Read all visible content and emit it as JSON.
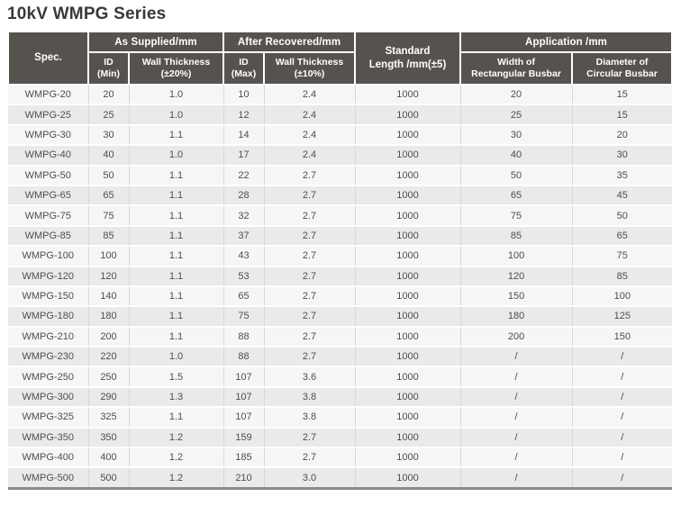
{
  "title": "10kV WMPG Series",
  "colors": {
    "header_bg": "#56534f",
    "row_odd": "#f6f6f7",
    "row_even": "#eaeaec",
    "body_text": "#4f4d4d",
    "bottom_border": "#8b8b8b"
  },
  "table": {
    "header": {
      "spec": "Spec.",
      "as_supplied": "As Supplied/mm",
      "after_recovered": "After Recovered/mm",
      "standard_length_line1": "Standard",
      "standard_length_line2": "Length /mm(±5)",
      "application": "Application /mm",
      "id_min_line1": "ID",
      "id_min_line2": "(Min)",
      "wt20_line1": "Wall Thickness",
      "wt20_line2": "(±20%)",
      "id_max_line1": "ID",
      "id_max_line2": "(Max)",
      "wt10_line1": "Wall Thickness",
      "wt10_line2": "(±10%)",
      "width_rect_line1": "Width of",
      "width_rect_line2": "Rectangular Busbar",
      "dia_circ_line1": "Diameter of",
      "dia_circ_line2": "Circular Busbar"
    },
    "rows": [
      {
        "spec": "WMPG-20",
        "id_min": "20",
        "wt20": "1.0",
        "id_max": "10",
        "wt10": "2.4",
        "std_len": "1000",
        "width_rect": "20",
        "dia_circ": "15"
      },
      {
        "spec": "WMPG-25",
        "id_min": "25",
        "wt20": "1.0",
        "id_max": "12",
        "wt10": "2.4",
        "std_len": "1000",
        "width_rect": "25",
        "dia_circ": "15"
      },
      {
        "spec": "WMPG-30",
        "id_min": "30",
        "wt20": "1.1",
        "id_max": "14",
        "wt10": "2.4",
        "std_len": "1000",
        "width_rect": "30",
        "dia_circ": "20"
      },
      {
        "spec": "WMPG-40",
        "id_min": "40",
        "wt20": "1.0",
        "id_max": "17",
        "wt10": "2.4",
        "std_len": "1000",
        "width_rect": "40",
        "dia_circ": "30"
      },
      {
        "spec": "WMPG-50",
        "id_min": "50",
        "wt20": "1.1",
        "id_max": "22",
        "wt10": "2.7",
        "std_len": "1000",
        "width_rect": "50",
        "dia_circ": "35"
      },
      {
        "spec": "WMPG-65",
        "id_min": "65",
        "wt20": "1.1",
        "id_max": "28",
        "wt10": "2.7",
        "std_len": "1000",
        "width_rect": "65",
        "dia_circ": "45"
      },
      {
        "spec": "WMPG-75",
        "id_min": "75",
        "wt20": "1.1",
        "id_max": "32",
        "wt10": "2.7",
        "std_len": "1000",
        "width_rect": "75",
        "dia_circ": "50"
      },
      {
        "spec": "WMPG-85",
        "id_min": "85",
        "wt20": "1.1",
        "id_max": "37",
        "wt10": "2.7",
        "std_len": "1000",
        "width_rect": "85",
        "dia_circ": "65"
      },
      {
        "spec": "WMPG-100",
        "id_min": "100",
        "wt20": "1.1",
        "id_max": "43",
        "wt10": "2.7",
        "std_len": "1000",
        "width_rect": "100",
        "dia_circ": "75"
      },
      {
        "spec": "WMPG-120",
        "id_min": "120",
        "wt20": "1.1",
        "id_max": "53",
        "wt10": "2.7",
        "std_len": "1000",
        "width_rect": "120",
        "dia_circ": "85"
      },
      {
        "spec": "WMPG-150",
        "id_min": "140",
        "wt20": "1.1",
        "id_max": "65",
        "wt10": "2.7",
        "std_len": "1000",
        "width_rect": "150",
        "dia_circ": "100"
      },
      {
        "spec": "WMPG-180",
        "id_min": "180",
        "wt20": "1.1",
        "id_max": "75",
        "wt10": "2.7",
        "std_len": "1000",
        "width_rect": "180",
        "dia_circ": "125"
      },
      {
        "spec": "WMPG-210",
        "id_min": "200",
        "wt20": "1.1",
        "id_max": "88",
        "wt10": "2.7",
        "std_len": "1000",
        "width_rect": "200",
        "dia_circ": "150"
      },
      {
        "spec": "WMPG-230",
        "id_min": "220",
        "wt20": "1.0",
        "id_max": "88",
        "wt10": "2.7",
        "std_len": "1000",
        "width_rect": "/",
        "dia_circ": "/"
      },
      {
        "spec": "WMPG-250",
        "id_min": "250",
        "wt20": "1.5",
        "id_max": "107",
        "wt10": "3.6",
        "std_len": "1000",
        "width_rect": "/",
        "dia_circ": "/"
      },
      {
        "spec": "WMPG-300",
        "id_min": "290",
        "wt20": "1.3",
        "id_max": "107",
        "wt10": "3.8",
        "std_len": "1000",
        "width_rect": "/",
        "dia_circ": "/"
      },
      {
        "spec": "WMPG-325",
        "id_min": "325",
        "wt20": "1.1",
        "id_max": "107",
        "wt10": "3.8",
        "std_len": "1000",
        "width_rect": "/",
        "dia_circ": "/"
      },
      {
        "spec": "WMPG-350",
        "id_min": "350",
        "wt20": "1.2",
        "id_max": "159",
        "wt10": "2.7",
        "std_len": "1000",
        "width_rect": "/",
        "dia_circ": "/"
      },
      {
        "spec": "WMPG-400",
        "id_min": "400",
        "wt20": "1.2",
        "id_max": "185",
        "wt10": "2.7",
        "std_len": "1000",
        "width_rect": "/",
        "dia_circ": "/"
      },
      {
        "spec": "WMPG-500",
        "id_min": "500",
        "wt20": "1.2",
        "id_max": "210",
        "wt10": "3.0",
        "std_len": "1000",
        "width_rect": "/",
        "dia_circ": "/"
      }
    ]
  }
}
